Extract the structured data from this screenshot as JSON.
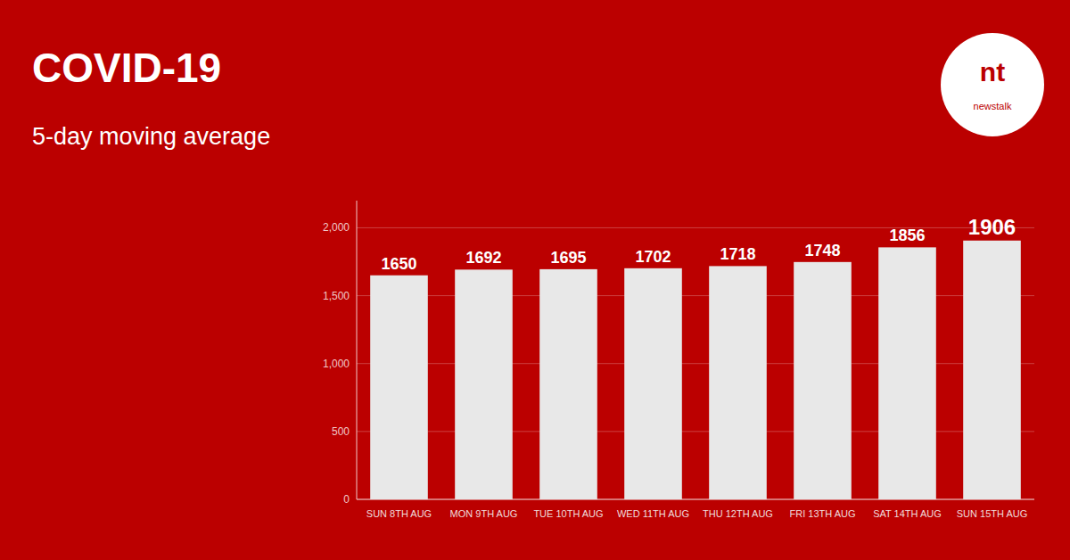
{
  "chart_data": {
    "type": "bar",
    "title": "COVID-19",
    "subtitle": "5-day moving average",
    "categories": [
      "SUN 8TH AUG",
      "MON 9TH AUG",
      "TUE 10TH AUG",
      "WED 11TH AUG",
      "THU 12TH AUG",
      "FRI 13TH AUG",
      "SAT 14TH AUG",
      "SUN 15TH AUG"
    ],
    "values": [
      1650,
      1692,
      1695,
      1702,
      1718,
      1748,
      1856,
      1906
    ],
    "color": "#e8e8e8",
    "ylim": [
      0,
      2200
    ],
    "yticks": [
      0,
      500,
      {
        "value": 1000,
        "label": "1,000"
      },
      {
        "value": 1500,
        "label": "1,500"
      },
      {
        "value": 2000,
        "label": "2,000"
      }
    ],
    "grid": true,
    "data_labels": true,
    "annotations": [
      "nt",
      "newstalk"
    ]
  }
}
